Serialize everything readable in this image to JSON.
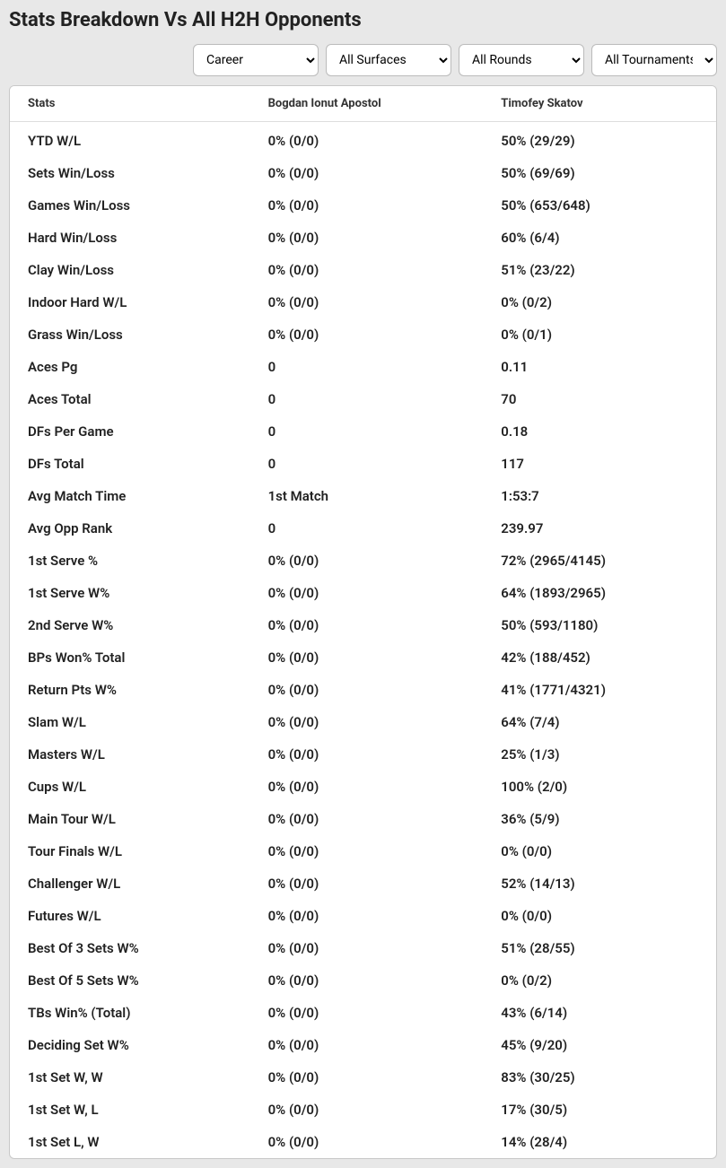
{
  "title": "Stats Breakdown Vs All H2H Opponents",
  "filters": {
    "career": {
      "selected": "Career",
      "options": [
        "Career"
      ]
    },
    "surface": {
      "selected": "All Surfaces",
      "options": [
        "All Surfaces"
      ]
    },
    "round": {
      "selected": "All Rounds",
      "options": [
        "All Rounds"
      ]
    },
    "tournament": {
      "selected": "All Tournaments",
      "options": [
        "All Tournaments"
      ]
    }
  },
  "table": {
    "headers": {
      "stats": "Stats",
      "player1": "Bogdan Ionut Apostol",
      "player2": "Timofey Skatov"
    },
    "rows": [
      {
        "stat": "YTD W/L",
        "p1": "0% (0/0)",
        "p2": "50% (29/29)"
      },
      {
        "stat": "Sets Win/Loss",
        "p1": "0% (0/0)",
        "p2": "50% (69/69)"
      },
      {
        "stat": "Games Win/Loss",
        "p1": "0% (0/0)",
        "p2": "50% (653/648)"
      },
      {
        "stat": "Hard Win/Loss",
        "p1": "0% (0/0)",
        "p2": "60% (6/4)"
      },
      {
        "stat": "Clay Win/Loss",
        "p1": "0% (0/0)",
        "p2": "51% (23/22)"
      },
      {
        "stat": "Indoor Hard W/L",
        "p1": "0% (0/0)",
        "p2": "0% (0/2)"
      },
      {
        "stat": "Grass Win/Loss",
        "p1": "0% (0/0)",
        "p2": "0% (0/1)"
      },
      {
        "stat": "Aces Pg",
        "p1": "0",
        "p2": "0.11"
      },
      {
        "stat": "Aces Total",
        "p1": "0",
        "p2": "70"
      },
      {
        "stat": "DFs Per Game",
        "p1": "0",
        "p2": "0.18"
      },
      {
        "stat": "DFs Total",
        "p1": "0",
        "p2": "117"
      },
      {
        "stat": "Avg Match Time",
        "p1": "1st Match",
        "p2": "1:53:7"
      },
      {
        "stat": "Avg Opp Rank",
        "p1": "0",
        "p2": "239.97"
      },
      {
        "stat": "1st Serve %",
        "p1": "0% (0/0)",
        "p2": "72% (2965/4145)"
      },
      {
        "stat": "1st Serve W%",
        "p1": "0% (0/0)",
        "p2": "64% (1893/2965)"
      },
      {
        "stat": "2nd Serve W%",
        "p1": "0% (0/0)",
        "p2": "50% (593/1180)"
      },
      {
        "stat": "BPs Won% Total",
        "p1": "0% (0/0)",
        "p2": "42% (188/452)"
      },
      {
        "stat": "Return Pts W%",
        "p1": "0% (0/0)",
        "p2": "41% (1771/4321)"
      },
      {
        "stat": "Slam W/L",
        "p1": "0% (0/0)",
        "p2": "64% (7/4)"
      },
      {
        "stat": "Masters W/L",
        "p1": "0% (0/0)",
        "p2": "25% (1/3)"
      },
      {
        "stat": "Cups W/L",
        "p1": "0% (0/0)",
        "p2": "100% (2/0)"
      },
      {
        "stat": "Main Tour W/L",
        "p1": "0% (0/0)",
        "p2": "36% (5/9)"
      },
      {
        "stat": "Tour Finals W/L",
        "p1": "0% (0/0)",
        "p2": "0% (0/0)"
      },
      {
        "stat": "Challenger W/L",
        "p1": "0% (0/0)",
        "p2": "52% (14/13)"
      },
      {
        "stat": "Futures W/L",
        "p1": "0% (0/0)",
        "p2": "0% (0/0)"
      },
      {
        "stat": "Best Of 3 Sets W%",
        "p1": "0% (0/0)",
        "p2": "51% (28/55)"
      },
      {
        "stat": "Best Of 5 Sets W%",
        "p1": "0% (0/0)",
        "p2": "0% (0/2)"
      },
      {
        "stat": "TBs Win% (Total)",
        "p1": "0% (0/0)",
        "p2": "43% (6/14)"
      },
      {
        "stat": "Deciding Set W%",
        "p1": "0% (0/0)",
        "p2": "45% (9/20)"
      },
      {
        "stat": "1st Set W, W",
        "p1": "0% (0/0)",
        "p2": "83% (30/25)"
      },
      {
        "stat": "1st Set W, L",
        "p1": "0% (0/0)",
        "p2": "17% (30/5)"
      },
      {
        "stat": "1st Set L, W",
        "p1": "0% (0/0)",
        "p2": "14% (28/4)"
      }
    ]
  },
  "colors": {
    "page_bg": "#e8e8e8",
    "panel_bg": "#ffffff",
    "border": "#c8c8c8",
    "text": "#222222"
  }
}
